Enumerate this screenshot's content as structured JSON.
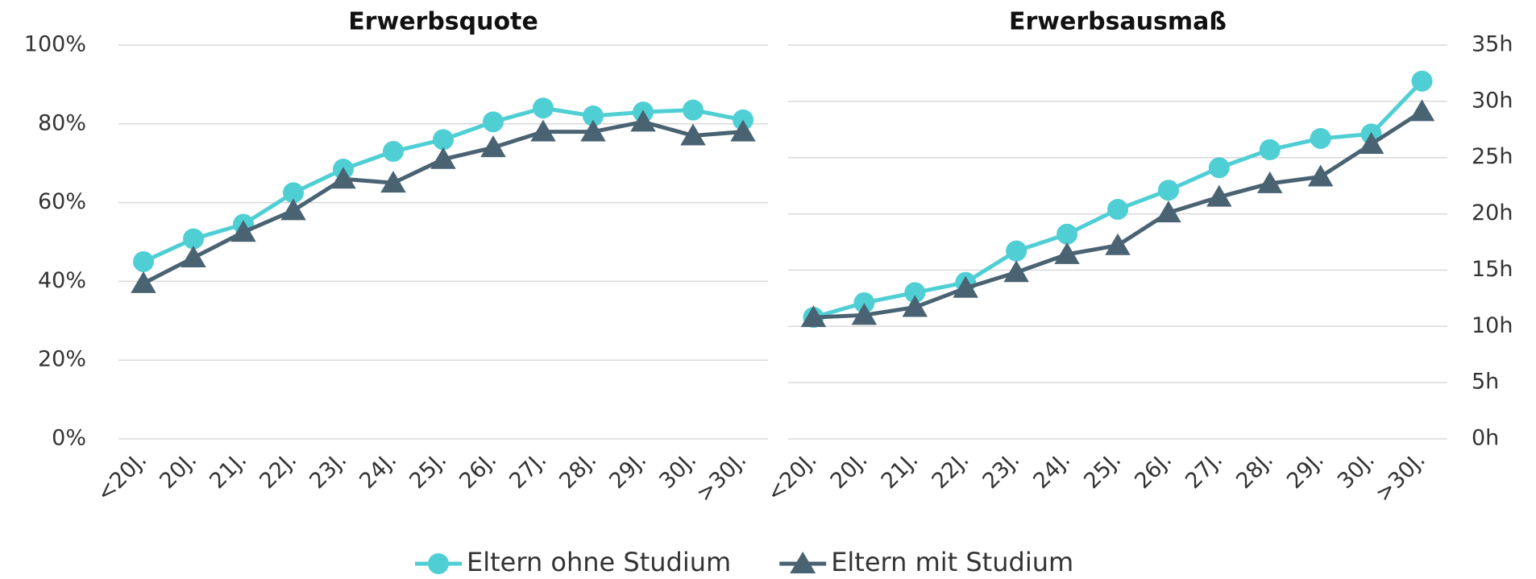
{
  "chart_data": [
    {
      "type": "line",
      "title": "Erwerbsquote",
      "categories": [
        "<20J.",
        "20J.",
        "21J.",
        "22J.",
        "23J.",
        "24J.",
        "25J.",
        "26J.",
        "27J.",
        "28J.",
        "29J.",
        "30J.",
        ">30J."
      ],
      "series": [
        {
          "name": "Eltern ohne Studium",
          "color": "#4fcfd4",
          "marker": "circle",
          "values": [
            45,
            50.8,
            54.5,
            62.5,
            68.5,
            73,
            76,
            80.5,
            84,
            82,
            83,
            83.5,
            81
          ]
        },
        {
          "name": "Eltern mit Studium",
          "color": "#4a6373",
          "marker": "triangle",
          "values": [
            39.5,
            46,
            52.5,
            58,
            66,
            65,
            71,
            74,
            78,
            78,
            80.5,
            77,
            78
          ]
        }
      ],
      "ylim": [
        0,
        100
      ],
      "yticks": [
        {
          "value": 0,
          "label": "0%"
        },
        {
          "value": 20,
          "label": "20%"
        },
        {
          "value": 40,
          "label": "40%"
        },
        {
          "value": 60,
          "label": "60%"
        },
        {
          "value": 80,
          "label": "80%"
        },
        {
          "value": 100,
          "label": "100%"
        }
      ],
      "grid": true,
      "y_axis_side": "left"
    },
    {
      "type": "line",
      "title": "Erwerbsausmaß",
      "categories": [
        "<20J.",
        "20J.",
        "21J.",
        "22J.",
        "23J.",
        "24J.",
        "25J.",
        "26J.",
        "27J.",
        "28J.",
        "29J.",
        "30J.",
        ">30J."
      ],
      "series": [
        {
          "color": "#4fcfd4",
          "marker": "circle",
          "values": [
            10.8,
            12.1,
            13,
            13.9,
            16.7,
            18.2,
            20.4,
            22.1,
            24.1,
            25.7,
            26.7,
            27.1,
            31.8
          ]
        },
        {
          "color": "#4a6373",
          "marker": "triangle",
          "values": [
            10.8,
            11,
            11.7,
            13.4,
            14.8,
            16.4,
            17.2,
            20.1,
            21.5,
            22.7,
            23.3,
            26.2,
            29.1
          ]
        }
      ],
      "ylim": [
        0,
        35
      ],
      "yticks": [
        {
          "value": 0,
          "label": "0h"
        },
        {
          "value": 5,
          "label": "5h"
        },
        {
          "value": 10,
          "label": "10h"
        },
        {
          "value": 15,
          "label": "15h"
        },
        {
          "value": 20,
          "label": "20h"
        },
        {
          "value": 25,
          "label": "25h"
        },
        {
          "value": 30,
          "label": "30h"
        },
        {
          "value": 35,
          "label": "35h"
        }
      ],
      "grid": true,
      "y_axis_side": "right"
    }
  ]
}
